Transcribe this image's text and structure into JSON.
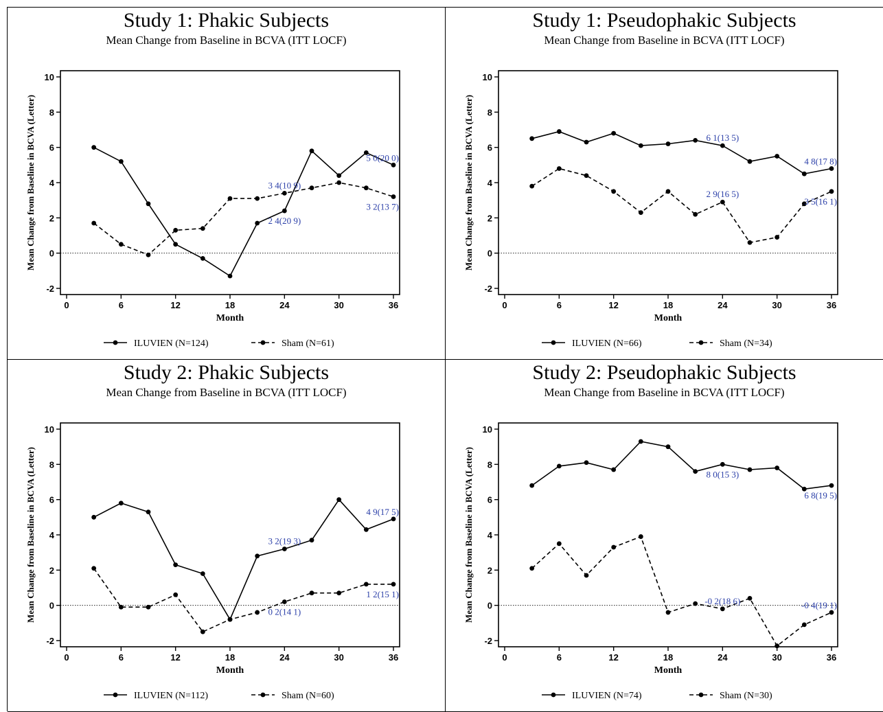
{
  "charts_meta": {
    "ylabel": "Mean Change from Baseline in BCVA (Letter)",
    "xlabel": "Month"
  },
  "chart_data": [
    {
      "type": "line",
      "title": "Study 1: Phakic Subjects",
      "subtitle": "Mean Change from Baseline in BCVA (ITT LOCF)",
      "xlabel": "Month",
      "ylabel": "Mean Change from Baseline in BCVA (Letter)",
      "xlim": [
        0,
        36
      ],
      "ylim": [
        -2,
        10
      ],
      "x_ticks": [
        0,
        6,
        12,
        18,
        24,
        30,
        36
      ],
      "y_ticks": [
        -2,
        0,
        2,
        4,
        6,
        8,
        10
      ],
      "x": [
        3,
        6,
        9,
        12,
        15,
        18,
        21,
        24,
        27,
        30,
        33,
        36
      ],
      "series": [
        {
          "name": "ILUVIEN",
          "legend": "ILUVIEN  (N=124)",
          "style": "solid",
          "values": [
            6.0,
            5.2,
            2.8,
            0.5,
            -0.3,
            -1.3,
            1.7,
            2.4,
            5.8,
            4.4,
            5.7,
            5.0
          ]
        },
        {
          "name": "Sham",
          "legend": "Sham (N=61)",
          "style": "dashed",
          "values": [
            1.7,
            0.5,
            -0.1,
            1.3,
            1.4,
            3.1,
            3.1,
            3.4,
            3.7,
            4.0,
            3.7,
            3.2
          ]
        }
      ],
      "annotations": [
        {
          "text": "3 4(10 9)",
          "x": 24,
          "y": 3.4,
          "pos": "above"
        },
        {
          "text": "2 4(20 9)",
          "x": 24,
          "y": 2.4,
          "pos": "below"
        },
        {
          "text": "5 0(20 0)",
          "x": 36,
          "y": 5.0,
          "pos": "above-left"
        },
        {
          "text": "3 2(13 7)",
          "x": 36,
          "y": 3.2,
          "pos": "below-left"
        }
      ],
      "reference_line": 0
    },
    {
      "type": "line",
      "title": "Study 1: Pseudophakic Subjects",
      "subtitle": "Mean Change from Baseline in BCVA (ITT LOCF)",
      "xlabel": "Month",
      "ylabel": "Mean Change from Baseline in BCVA (Letter)",
      "xlim": [
        0,
        36
      ],
      "ylim": [
        -2,
        10
      ],
      "x_ticks": [
        0,
        6,
        12,
        18,
        24,
        30,
        36
      ],
      "y_ticks": [
        -2,
        0,
        2,
        4,
        6,
        8,
        10
      ],
      "x": [
        3,
        6,
        9,
        12,
        15,
        18,
        21,
        24,
        27,
        30,
        33,
        36
      ],
      "series": [
        {
          "name": "ILUVIEN",
          "legend": "ILUVIEN (N=66)",
          "style": "solid",
          "values": [
            6.5,
            6.9,
            6.3,
            6.8,
            6.1,
            6.2,
            6.4,
            6.1,
            5.2,
            5.5,
            4.5,
            4.8
          ]
        },
        {
          "name": "Sham",
          "legend": "Sham (N=34)",
          "style": "dashed",
          "values": [
            3.8,
            4.8,
            4.4,
            3.5,
            2.3,
            3.5,
            2.2,
            2.9,
            0.6,
            0.9,
            2.8,
            3.5
          ]
        }
      ],
      "annotations": [
        {
          "text": "6 1(13 5)",
          "x": 24,
          "y": 6.1,
          "pos": "above"
        },
        {
          "text": "2 9(16 5)",
          "x": 24,
          "y": 2.9,
          "pos": "above"
        },
        {
          "text": "4 8(17 8)",
          "x": 36,
          "y": 4.8,
          "pos": "above-left"
        },
        {
          "text": "3 5(16 1)",
          "x": 36,
          "y": 3.5,
          "pos": "below-left"
        }
      ],
      "reference_line": 0
    },
    {
      "type": "line",
      "title": "Study 2: Phakic Subjects",
      "subtitle": "Mean Change from Baseline in BCVA (ITT LOCF)",
      "xlabel": "Month",
      "ylabel": "Mean Change from Baseline in BCVA (Letter)",
      "xlim": [
        0,
        36
      ],
      "ylim": [
        -2,
        10
      ],
      "x_ticks": [
        0,
        6,
        12,
        18,
        24,
        30,
        36
      ],
      "y_ticks": [
        -2,
        0,
        2,
        4,
        6,
        8,
        10
      ],
      "x": [
        3,
        6,
        9,
        12,
        15,
        18,
        21,
        24,
        27,
        30,
        33,
        36
      ],
      "series": [
        {
          "name": "ILUVIEN",
          "legend": "ILUVIEN (N=112)",
          "style": "solid",
          "values": [
            5.0,
            5.8,
            5.3,
            2.3,
            1.8,
            -0.8,
            2.8,
            3.2,
            3.7,
            6.0,
            4.3,
            4.9
          ]
        },
        {
          "name": "Sham",
          "legend": "Sham (N=60)",
          "style": "dashed",
          "values": [
            2.1,
            -0.1,
            -0.1,
            0.6,
            -1.5,
            -0.8,
            -0.4,
            0.2,
            0.7,
            0.7,
            1.2,
            1.2
          ]
        }
      ],
      "annotations": [
        {
          "text": "3 2(19 3)",
          "x": 24,
          "y": 3.2,
          "pos": "above"
        },
        {
          "text": "0 2(14 1)",
          "x": 24,
          "y": 0.2,
          "pos": "below"
        },
        {
          "text": "4 9(17 5)",
          "x": 36,
          "y": 4.9,
          "pos": "above-left"
        },
        {
          "text": "1 2(15 1)",
          "x": 36,
          "y": 1.2,
          "pos": "below-left"
        }
      ],
      "reference_line": 0
    },
    {
      "type": "line",
      "title": "Study 2: Pseudophakic Subjects",
      "subtitle": "Mean Change from Baseline in BCVA (ITT LOCF)",
      "xlabel": "Month",
      "ylabel": "Mean Change from Baseline in BCVA (Letter)",
      "xlim": [
        0,
        36
      ],
      "ylim": [
        -2,
        10
      ],
      "x_ticks": [
        0,
        6,
        12,
        18,
        24,
        30,
        36
      ],
      "y_ticks": [
        -2,
        0,
        2,
        4,
        6,
        8,
        10
      ],
      "x": [
        3,
        6,
        9,
        12,
        15,
        18,
        21,
        24,
        27,
        30,
        33,
        36
      ],
      "series": [
        {
          "name": "ILUVIEN",
          "legend": "ILUVIEN (N=74)",
          "style": "solid",
          "values": [
            6.8,
            7.9,
            8.1,
            7.7,
            9.3,
            9.0,
            7.6,
            8.0,
            7.7,
            7.8,
            6.6,
            6.8
          ]
        },
        {
          "name": "Sham",
          "legend": "Sham (N=30)",
          "style": "dashed",
          "values": [
            2.1,
            3.5,
            1.7,
            3.3,
            3.9,
            -0.4,
            0.1,
            -0.2,
            0.4,
            -2.3,
            -1.1,
            -0.4
          ]
        }
      ],
      "annotations": [
        {
          "text": "8 0(15 3)",
          "x": 24,
          "y": 8.0,
          "pos": "below"
        },
        {
          "text": "-0 2(18 6)",
          "x": 24,
          "y": -0.2,
          "pos": "above"
        },
        {
          "text": "6 8(19 5)",
          "x": 36,
          "y": 6.8,
          "pos": "below-left"
        },
        {
          "text": "-0 4(19 1)",
          "x": 36,
          "y": -0.4,
          "pos": "above-left"
        }
      ],
      "reference_line": 0
    }
  ],
  "colors": {
    "line": "#000000",
    "annotation": "#2b3fa8",
    "reference": "#000000"
  }
}
